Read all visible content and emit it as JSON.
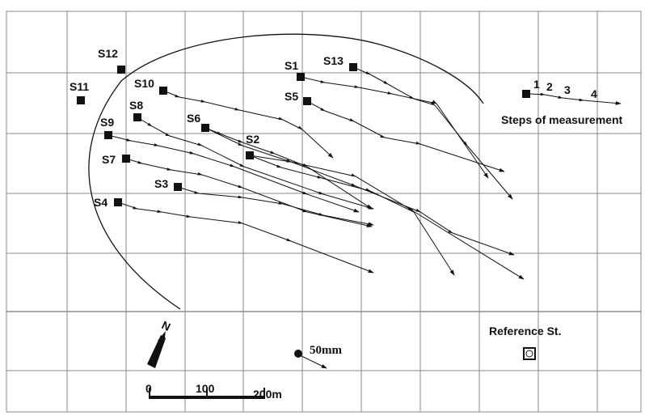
{
  "stations": [
    {
      "id": "S1",
      "label": "S1"
    },
    {
      "id": "S2",
      "label": "S2"
    },
    {
      "id": "S3",
      "label": "S3"
    },
    {
      "id": "S4",
      "label": "S4"
    },
    {
      "id": "S5",
      "label": "S5"
    },
    {
      "id": "S6",
      "label": "S6"
    },
    {
      "id": "S7",
      "label": "S7"
    },
    {
      "id": "S8",
      "label": "S8"
    },
    {
      "id": "S9",
      "label": "S9"
    },
    {
      "id": "S10",
      "label": "S10"
    },
    {
      "id": "S11",
      "label": "S11"
    },
    {
      "id": "S12",
      "label": "S12"
    },
    {
      "id": "S13",
      "label": "S13"
    }
  ],
  "legend": {
    "steps_label": "Steps of measurement",
    "steps": [
      "1",
      "2",
      "3",
      "4"
    ],
    "reference_label": "Reference St."
  },
  "vector_scale": {
    "label": "50mm"
  },
  "scale_bar": {
    "ticks": [
      "0",
      "100",
      "200m"
    ]
  },
  "north": {
    "label": "N"
  }
}
